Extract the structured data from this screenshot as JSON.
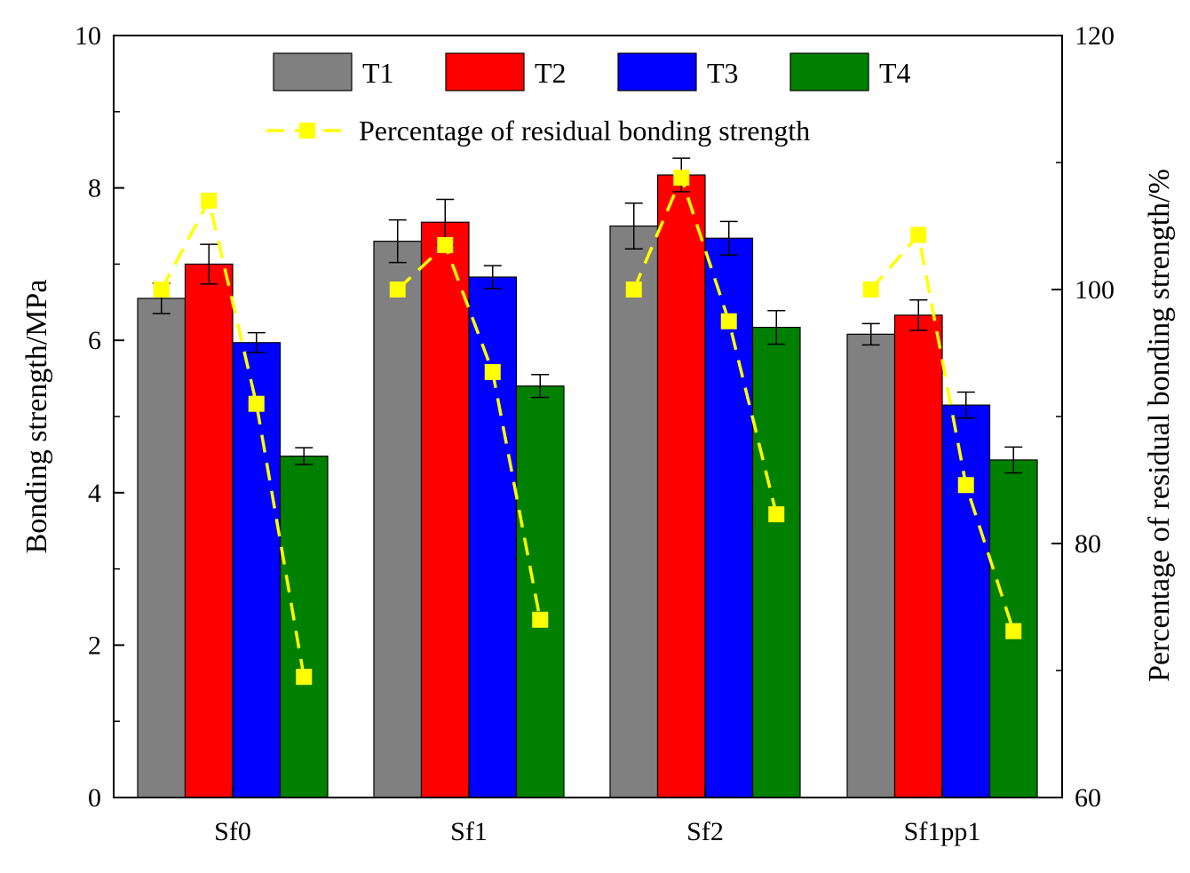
{
  "chart_data": {
    "type": "bar",
    "categories": [
      "Sf0",
      "Sf1",
      "Sf2",
      "Sf1pp1"
    ],
    "series": [
      {
        "name": "T1",
        "color": "#808080",
        "values": [
          6.55,
          7.3,
          7.5,
          6.08
        ],
        "errors": [
          0.2,
          0.28,
          0.3,
          0.14
        ]
      },
      {
        "name": "T2",
        "color": "#ff0000",
        "values": [
          7.0,
          7.55,
          8.17,
          6.33
        ],
        "errors": [
          0.26,
          0.3,
          0.22,
          0.2
        ]
      },
      {
        "name": "T3",
        "color": "#0000ff",
        "values": [
          5.97,
          6.83,
          7.34,
          5.15
        ],
        "errors": [
          0.13,
          0.15,
          0.22,
          0.17
        ]
      },
      {
        "name": "T4",
        "color": "#008000",
        "values": [
          4.48,
          5.4,
          6.17,
          4.43
        ],
        "errors": [
          0.11,
          0.15,
          0.22,
          0.17
        ]
      }
    ],
    "line_series": {
      "name": "Percentage of residual bonding strength",
      "color": "#ffff00",
      "axis": "right",
      "values": [
        [
          100,
          107,
          91,
          69.5
        ],
        [
          100,
          103.5,
          93.5,
          74
        ],
        [
          100,
          108.8,
          97.5,
          82.3
        ],
        [
          100,
          104.3,
          84.6,
          73.1
        ]
      ]
    },
    "ylabel": "Bonding strength/MPa",
    "ylabel_right": "Percentage of residual bonding strength/%",
    "xlabel": "",
    "ylim": [
      0,
      10
    ],
    "ylim_right": [
      60,
      120
    ],
    "yticks": [
      "0",
      "2",
      "4",
      "6",
      "8",
      "10"
    ],
    "yticks_right": [
      "60",
      "80",
      "100",
      "120"
    ],
    "legend_position": "top"
  }
}
